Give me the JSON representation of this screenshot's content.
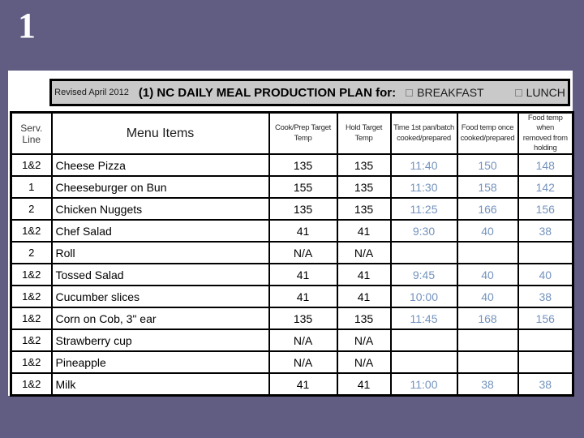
{
  "slide": {
    "number": "1"
  },
  "colors": {
    "background": "#605c82",
    "title_bar_bg": "#c9c9c9",
    "accent_blue": "#7493bd",
    "border": "#000000"
  },
  "title_bar": {
    "revised": "Revised April 2012",
    "title": "(1) NC DAILY MEAL PRODUCTION PLAN for:",
    "checkboxes": [
      {
        "label": "BREAKFAST",
        "checked": false
      },
      {
        "label": "LUNCH",
        "checked": false
      }
    ]
  },
  "table": {
    "headers": [
      "Serv.\nLine",
      "Menu Items",
      "Cook/Prep Target\nTemp",
      "Hold Target Temp",
      "Time 1st pan/batch\ncooked/prepared",
      "Food temp once\ncooked/prepared",
      "Food temp when\nremoved from\nholding"
    ],
    "rows": [
      {
        "serv": "1&2",
        "item": "Cheese Pizza",
        "cook": "135",
        "hold": "135",
        "time": "11:40",
        "temp_once": "150",
        "temp_removed": "148"
      },
      {
        "serv": "1",
        "item": "Cheeseburger on Bun",
        "cook": "155",
        "hold": "135",
        "time": "11:30",
        "temp_once": "158",
        "temp_removed": "142"
      },
      {
        "serv": "2",
        "item": "Chicken Nuggets",
        "cook": "135",
        "hold": "135",
        "time": "11:25",
        "temp_once": "166",
        "temp_removed": "156"
      },
      {
        "serv": "1&2",
        "item": "Chef Salad",
        "cook": "41",
        "hold": "41",
        "time": "9:30",
        "temp_once": "40",
        "temp_removed": "38"
      },
      {
        "serv": "2",
        "item": "Roll",
        "cook": "N/A",
        "hold": "N/A",
        "time": "",
        "temp_once": "",
        "temp_removed": ""
      },
      {
        "serv": "1&2",
        "item": "Tossed Salad",
        "cook": "41",
        "hold": "41",
        "time": "9:45",
        "temp_once": "40",
        "temp_removed": "40"
      },
      {
        "serv": "1&2",
        "item": "Cucumber slices",
        "cook": "41",
        "hold": "41",
        "time": "10:00",
        "temp_once": "40",
        "temp_removed": "38"
      },
      {
        "serv": "1&2",
        "item": "Corn on Cob, 3\" ear",
        "cook": "135",
        "hold": "135",
        "time": "11:45",
        "temp_once": "168",
        "temp_removed": "156"
      },
      {
        "serv": "1&2",
        "item": "Strawberry cup",
        "cook": "N/A",
        "hold": "N/A",
        "time": "",
        "temp_once": "",
        "temp_removed": ""
      },
      {
        "serv": "1&2",
        "item": "Pineapple",
        "cook": "N/A",
        "hold": "N/A",
        "time": "",
        "temp_once": "",
        "temp_removed": ""
      },
      {
        "serv": "1&2",
        "item": "Milk",
        "cook": "41",
        "hold": "41",
        "time": "11:00",
        "temp_once": "38",
        "temp_removed": "38"
      }
    ]
  }
}
